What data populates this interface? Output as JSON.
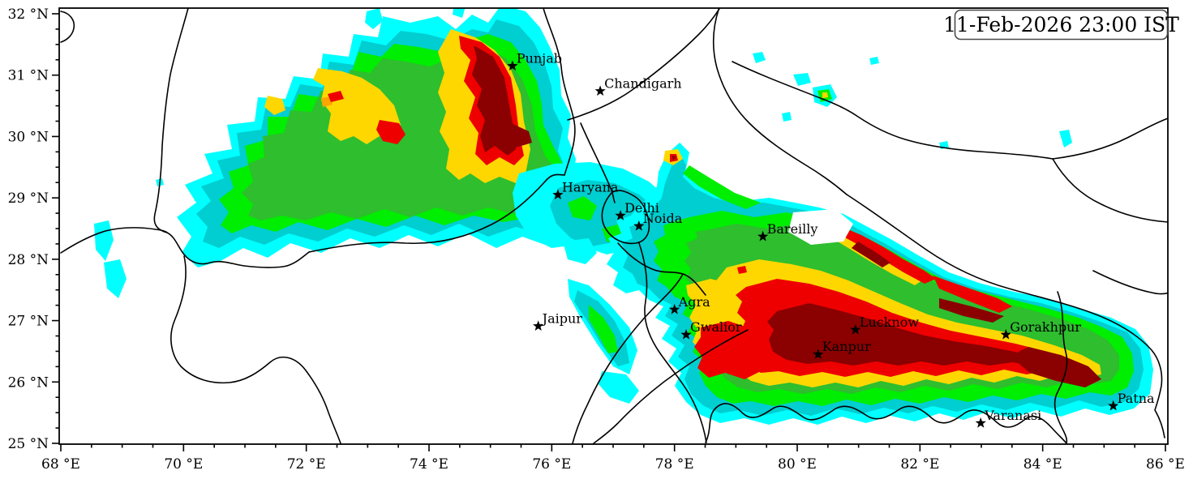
{
  "timestamp": "11-Feb-2026 23:00 IST",
  "map": {
    "extent": {
      "lon_min": 68,
      "lon_max": 86,
      "lat_min": 25,
      "lat_max": 32
    },
    "x_axis": {
      "unit": "°E",
      "major_ticks": [
        68,
        70,
        72,
        74,
        76,
        78,
        80,
        82,
        84,
        86
      ],
      "tick_labels": [
        "68 °E",
        "70 °E",
        "72 °E",
        "74 °E",
        "76 °E",
        "78 °E",
        "80 °E",
        "82 °E",
        "84 °E",
        "86 °E"
      ],
      "minor_step": 0.5
    },
    "y_axis": {
      "unit": "°N",
      "major_ticks": [
        25,
        26,
        27,
        28,
        29,
        30,
        31,
        32
      ],
      "tick_labels": [
        "25 °N",
        "26 °N",
        "27 °N",
        "28 °N",
        "29 °N",
        "30 °N",
        "31 °N",
        "32 °N"
      ],
      "minor_step": 0.25
    },
    "palette": [
      {
        "level": 1,
        "name": "rain-level-1",
        "color": "#00FFFF"
      },
      {
        "level": 2,
        "name": "rain-level-2",
        "color": "#00CED1"
      },
      {
        "level": 3,
        "name": "rain-level-3",
        "color": "#00EE00"
      },
      {
        "level": 4,
        "name": "rain-level-4",
        "color": "#2EBE2E"
      },
      {
        "level": 5,
        "name": "rain-level-5",
        "color": "#FFD700"
      },
      {
        "level": 6,
        "name": "rain-level-6",
        "color": "#FFA500"
      },
      {
        "level": 7,
        "name": "rain-level-7",
        "color": "#EE0000"
      },
      {
        "level": 8,
        "name": "rain-level-8",
        "color": "#8B0000"
      }
    ],
    "cities": [
      {
        "name": "Punjab",
        "lon": 75.36,
        "lat": 31.15
      },
      {
        "name": "Chandigarh",
        "lon": 76.79,
        "lat": 30.74
      },
      {
        "name": "Haryana",
        "lon": 76.1,
        "lat": 29.05
      },
      {
        "name": "Delhi",
        "lon": 77.12,
        "lat": 28.71
      },
      {
        "name": "Noida",
        "lon": 77.42,
        "lat": 28.54
      },
      {
        "name": "Bareilly",
        "lon": 79.44,
        "lat": 28.37
      },
      {
        "name": "Jaipur",
        "lon": 75.78,
        "lat": 26.91
      },
      {
        "name": "Agra",
        "lon": 78.0,
        "lat": 27.18
      },
      {
        "name": "Gwalior",
        "lon": 78.19,
        "lat": 26.77
      },
      {
        "name": "Lucknow",
        "lon": 80.95,
        "lat": 26.85
      },
      {
        "name": "Kanpur",
        "lon": 80.34,
        "lat": 26.45
      },
      {
        "name": "Gorakhpur",
        "lon": 83.4,
        "lat": 26.77
      },
      {
        "name": "Patna",
        "lon": 85.15,
        "lat": 25.61
      },
      {
        "name": "Varanasi",
        "lon": 82.99,
        "lat": 25.33
      }
    ]
  }
}
